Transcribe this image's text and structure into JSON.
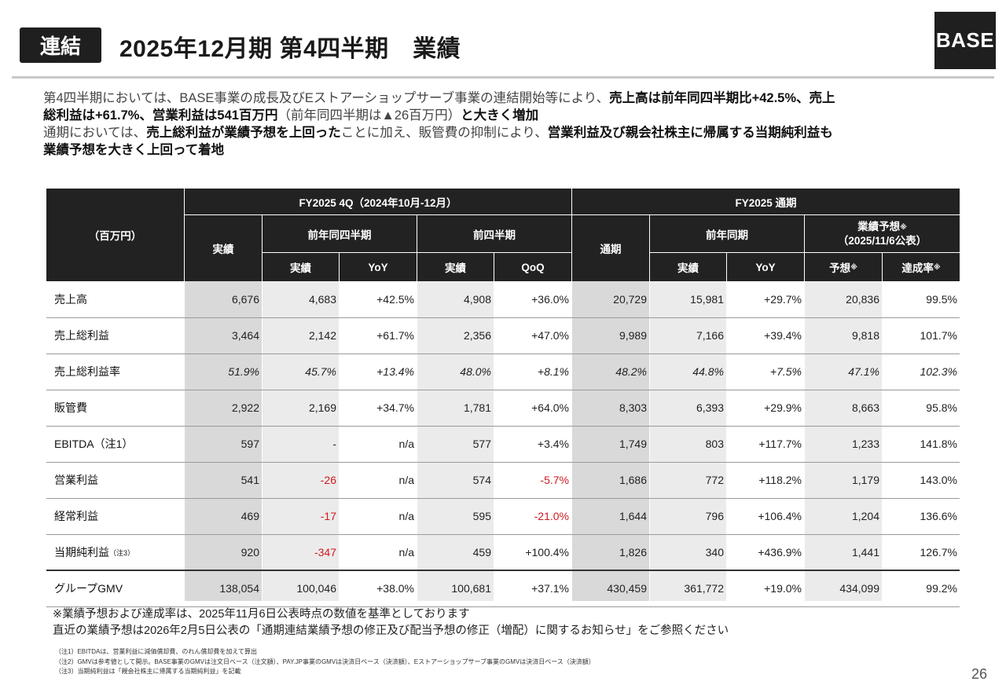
{
  "header": {
    "tag": "連結",
    "title": "2025年12月期 第4四半期　業績",
    "logo": "BASE"
  },
  "summary": {
    "l1_a": "第4四半期においては、BASE事業の成長及びEストアーショップサーブ事業の連結開始等により、",
    "l1_b": "売上高は前年同四半期比+42.5%、売上",
    "l2_a": "総利益は+61.7%、営業利益は541百万円",
    "l2_b": "（前年同四半期は▲26百万円）",
    "l2_c": "と大きく増加",
    "l3_a": "通期においては、",
    "l3_b": "売上総利益が業績予想を上回った",
    "l3_c": "ことに加え、販管費の抑制により、",
    "l3_d": "営業利益及び親会社株主に帰属する当期純利益も",
    "l4": "業績予想を大きく上回って着地"
  },
  "table": {
    "unit": "（百万円）",
    "group_4q": "FY2025 4Q（2024年10月-12月）",
    "group_fy": "FY2025 通期",
    "actual": "実績",
    "prev_year_q": "前年同四半期",
    "prev_q": "前四半期",
    "full_year": "通期",
    "prev_year": "前年同期",
    "forecast_title": "業績予想",
    "forecast_date": "（2025/11/6公表）",
    "note_mark": "※",
    "sub_actual": "実績",
    "sub_yoy": "YoY",
    "sub_qoq": "QoQ",
    "sub_forecast": "予想",
    "sub_rate": "達成率",
    "rows": [
      {
        "label": "売上高",
        "sup": "",
        "c": [
          "6,676",
          "4,683",
          "+42.5%",
          "4,908",
          "+36.0%",
          "20,729",
          "15,981",
          "+29.7%",
          "20,836",
          "99.5%"
        ]
      },
      {
        "label": "売上総利益",
        "sup": "",
        "c": [
          "3,464",
          "2,142",
          "+61.7%",
          "2,356",
          "+47.0%",
          "9,989",
          "7,166",
          "+39.4%",
          "9,818",
          "101.7%"
        ]
      },
      {
        "label": "売上総利益率",
        "sup": "",
        "c": [
          "51.9%",
          "45.7%",
          "+13.4%",
          "48.0%",
          "+8.1%",
          "48.2%",
          "44.8%",
          "+7.5%",
          "47.1%",
          "102.3%"
        ]
      },
      {
        "label": "販管費",
        "sup": "",
        "c": [
          "2,922",
          "2,169",
          "+34.7%",
          "1,781",
          "+64.0%",
          "8,303",
          "6,393",
          "+29.9%",
          "8,663",
          "95.8%"
        ]
      },
      {
        "label": "EBITDA（注1）",
        "sup": "",
        "c": [
          "597",
          "-",
          "n/a",
          "577",
          "+3.4%",
          "1,749",
          "803",
          "+117.7%",
          "1,233",
          "141.8%"
        ]
      },
      {
        "label": "営業利益",
        "sup": "",
        "c": [
          "541",
          "-26",
          "n/a",
          "574",
          "-5.7%",
          "1,686",
          "772",
          "+118.2%",
          "1,179",
          "143.0%"
        ]
      },
      {
        "label": "経常利益",
        "sup": "",
        "c": [
          "469",
          "-17",
          "n/a",
          "595",
          "-21.0%",
          "1,644",
          "796",
          "+106.4%",
          "1,204",
          "136.6%"
        ]
      },
      {
        "label": "当期純利益",
        "sup": "（注3）",
        "c": [
          "920",
          "-347",
          "n/a",
          "459",
          "+100.4%",
          "1,826",
          "340",
          "+436.9%",
          "1,441",
          "126.7%"
        ]
      },
      {
        "label": "グループGMV",
        "sup": "",
        "c": [
          "138,054",
          "100,046",
          "+38.0%",
          "100,681",
          "+37.1%",
          "430,459",
          "361,772",
          "+19.0%",
          "434,099",
          "99.2%"
        ]
      }
    ],
    "red_cells": [
      "5-1",
      "5-4",
      "6-1",
      "6-4",
      "7-1"
    ]
  },
  "notes": {
    "n1": "※業績予想および達成率は、2025年11月6日公表時点の数値を基準としております",
    "n2": "直近の業績予想は2026年2月5日公表の「通期連結業績予想の修正及び配当予想の修正（増配）に関するお知らせ」をご参照ください",
    "f1": "（注1）EBITDAは、営業利益に減価償却費、のれん償却費を加えて算出",
    "f2": "（注2）GMVは参考値として開示。BASE事業のGMVは注文日ベース（注文額）、PAY.JP事業のGMVは決済日ベース（決済額）、Eストアーショップサーブ事業のGMVは決済日ベース（決済額）",
    "f3": "（注3）当期純利益は「親会社株主に帰属する当期純利益」を記載"
  },
  "page_number": "26"
}
